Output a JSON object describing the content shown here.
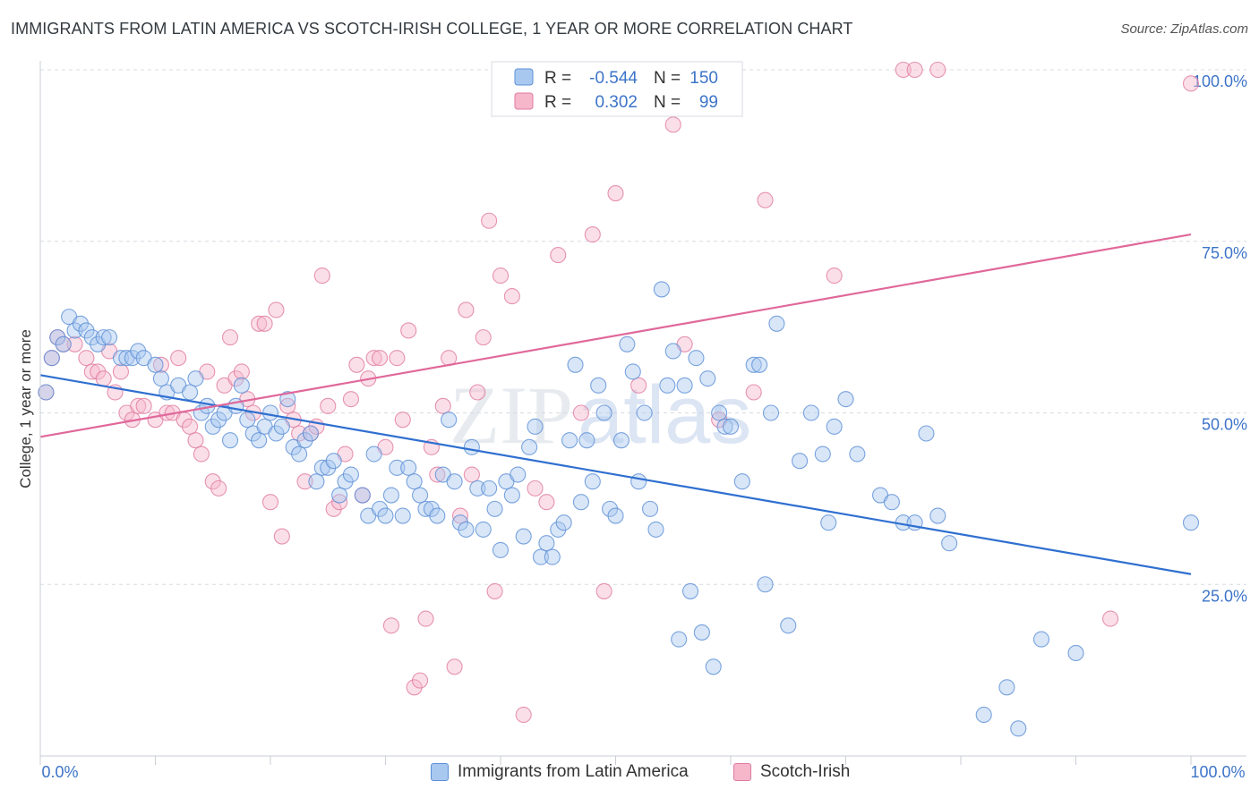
{
  "title": "IMMIGRANTS FROM LATIN AMERICA VS SCOTCH-IRISH COLLEGE, 1 YEAR OR MORE CORRELATION CHART",
  "source": "Source: ZipAtlas.com",
  "watermark": {
    "part1": "ZIP",
    "part2": "atlas"
  },
  "colors": {
    "blue_fill": "#a9c8f0",
    "blue_stroke": "#5b8fd6",
    "blue_line": "#2f6fd0",
    "pink_fill": "#f6b7cb",
    "pink_stroke": "#e07aa0",
    "pink_line": "#e0689a",
    "axis_label": "#3d74c9",
    "grid": "#d7dce2"
  },
  "legend": {
    "rows": [
      {
        "r_label": "R =",
        "r_value": "-0.544",
        "n_label": "N =",
        "n_value": "150"
      },
      {
        "r_label": "R =",
        "r_value": "0.302",
        "n_label": "N =",
        "n_value": "99"
      }
    ]
  },
  "bottom_legend": [
    "Immigrants from Latin America",
    "Scotch-Irish"
  ],
  "chart_data": {
    "type": "scatter",
    "xlabel": "",
    "ylabel": "College, 1 year or more",
    "xlim": [
      0,
      100
    ],
    "ylim": [
      0,
      100
    ],
    "x_tick_labels": [
      "0.0%",
      "100.0%"
    ],
    "y_tick_labels": [
      "25.0%",
      "50.0%",
      "75.0%",
      "100.0%"
    ],
    "y_ticks": [
      25,
      50,
      75,
      100
    ],
    "series": [
      {
        "name": "Immigrants from Latin America",
        "r": -0.544,
        "n": 150,
        "trend": {
          "x0": 0,
          "y0": 55.5,
          "x1": 100,
          "y1": 26.5
        },
        "points": [
          [
            0.5,
            53
          ],
          [
            1,
            58
          ],
          [
            1.5,
            61
          ],
          [
            2,
            60
          ],
          [
            2.5,
            64
          ],
          [
            3,
            62
          ],
          [
            3.5,
            63
          ],
          [
            4,
            62
          ],
          [
            4.5,
            61
          ],
          [
            5,
            60
          ],
          [
            5.5,
            61
          ],
          [
            6,
            61
          ],
          [
            7,
            58
          ],
          [
            7.5,
            58
          ],
          [
            8,
            58
          ],
          [
            8.5,
            59
          ],
          [
            9,
            58
          ],
          [
            10,
            57
          ],
          [
            10.5,
            55
          ],
          [
            11,
            53
          ],
          [
            12,
            54
          ],
          [
            13,
            53
          ],
          [
            13.5,
            55
          ],
          [
            14,
            50
          ],
          [
            14.5,
            51
          ],
          [
            15,
            48
          ],
          [
            15.5,
            49
          ],
          [
            16,
            50
          ],
          [
            16.5,
            46
          ],
          [
            17,
            51
          ],
          [
            17.5,
            54
          ],
          [
            18,
            49
          ],
          [
            18.5,
            47
          ],
          [
            19,
            46
          ],
          [
            19.5,
            48
          ],
          [
            20,
            50
          ],
          [
            20.5,
            47
          ],
          [
            21,
            48
          ],
          [
            21.5,
            52
          ],
          [
            22,
            45
          ],
          [
            22.5,
            44
          ],
          [
            23,
            46
          ],
          [
            23.5,
            47
          ],
          [
            24,
            40
          ],
          [
            24.5,
            42
          ],
          [
            25,
            42
          ],
          [
            25.5,
            43
          ],
          [
            26,
            38
          ],
          [
            26.5,
            40
          ],
          [
            27,
            41
          ],
          [
            28,
            38
          ],
          [
            28.5,
            35
          ],
          [
            29,
            44
          ],
          [
            29.5,
            36
          ],
          [
            30,
            35
          ],
          [
            30.5,
            38
          ],
          [
            31,
            42
          ],
          [
            31.5,
            35
          ],
          [
            32,
            42
          ],
          [
            32.5,
            40
          ],
          [
            33,
            38
          ],
          [
            33.5,
            36
          ],
          [
            34,
            36
          ],
          [
            34.5,
            35
          ],
          [
            35,
            41
          ],
          [
            35.5,
            49
          ],
          [
            36,
            40
          ],
          [
            36.5,
            34
          ],
          [
            37,
            33
          ],
          [
            37.5,
            45
          ],
          [
            38,
            39
          ],
          [
            38.5,
            33
          ],
          [
            39,
            39
          ],
          [
            39.5,
            36
          ],
          [
            40,
            30
          ],
          [
            40.5,
            40
          ],
          [
            41,
            38
          ],
          [
            41.5,
            41
          ],
          [
            42,
            32
          ],
          [
            42.5,
            45
          ],
          [
            43,
            48
          ],
          [
            43.5,
            29
          ],
          [
            44,
            31
          ],
          [
            44.5,
            29
          ],
          [
            45,
            33
          ],
          [
            45.5,
            34
          ],
          [
            46,
            46
          ],
          [
            46.5,
            57
          ],
          [
            47,
            37
          ],
          [
            47.5,
            46
          ],
          [
            48,
            40
          ],
          [
            48.5,
            54
          ],
          [
            49,
            50
          ],
          [
            49.5,
            36
          ],
          [
            50,
            35
          ],
          [
            50.5,
            46
          ],
          [
            51,
            60
          ],
          [
            51.5,
            56
          ],
          [
            52,
            40
          ],
          [
            52.5,
            50
          ],
          [
            53,
            36
          ],
          [
            53.5,
            33
          ],
          [
            54,
            68
          ],
          [
            54.5,
            54
          ],
          [
            55,
            59
          ],
          [
            55.5,
            17
          ],
          [
            56,
            54
          ],
          [
            56.5,
            24
          ],
          [
            57,
            58
          ],
          [
            57.5,
            18
          ],
          [
            58,
            55
          ],
          [
            58.5,
            13
          ],
          [
            59,
            50
          ],
          [
            59.5,
            48
          ],
          [
            60,
            48
          ],
          [
            61,
            40
          ],
          [
            62,
            57
          ],
          [
            62.5,
            57
          ],
          [
            63,
            25
          ],
          [
            63.5,
            50
          ],
          [
            64,
            63
          ],
          [
            65,
            19
          ],
          [
            66,
            43
          ],
          [
            67,
            50
          ],
          [
            68,
            44
          ],
          [
            68.5,
            34
          ],
          [
            69,
            48
          ],
          [
            70,
            52
          ],
          [
            71,
            44
          ],
          [
            73,
            38
          ],
          [
            74,
            37
          ],
          [
            75,
            34
          ],
          [
            76,
            34
          ],
          [
            77,
            47
          ],
          [
            78,
            35
          ],
          [
            79,
            31
          ],
          [
            82,
            6
          ],
          [
            84,
            10
          ],
          [
            85,
            4
          ],
          [
            87,
            17
          ],
          [
            90,
            15
          ],
          [
            100,
            34
          ]
        ]
      },
      {
        "name": "Scotch-Irish",
        "r": 0.302,
        "n": 99,
        "trend": {
          "x0": 0,
          "y0": 46.5,
          "x1": 100,
          "y1": 76
        },
        "points": [
          [
            0.5,
            53
          ],
          [
            1,
            58
          ],
          [
            1.5,
            61
          ],
          [
            2,
            60
          ],
          [
            3,
            60
          ],
          [
            4,
            58
          ],
          [
            4.5,
            56
          ],
          [
            5,
            56
          ],
          [
            5.5,
            55
          ],
          [
            6,
            59
          ],
          [
            6.5,
            53
          ],
          [
            7,
            56
          ],
          [
            7.5,
            50
          ],
          [
            8,
            49
          ],
          [
            8.5,
            51
          ],
          [
            9,
            51
          ],
          [
            10,
            49
          ],
          [
            10.5,
            57
          ],
          [
            11,
            50
          ],
          [
            11.5,
            50
          ],
          [
            12,
            58
          ],
          [
            12.5,
            49
          ],
          [
            13,
            48
          ],
          [
            13.5,
            46
          ],
          [
            14,
            44
          ],
          [
            14.5,
            56
          ],
          [
            15,
            40
          ],
          [
            15.5,
            39
          ],
          [
            16,
            54
          ],
          [
            16.5,
            61
          ],
          [
            17,
            55
          ],
          [
            17.5,
            56
          ],
          [
            18,
            52
          ],
          [
            18.5,
            50
          ],
          [
            19,
            63
          ],
          [
            19.5,
            63
          ],
          [
            20,
            37
          ],
          [
            20.5,
            65
          ],
          [
            21,
            32
          ],
          [
            21.5,
            51
          ],
          [
            22,
            49
          ],
          [
            22.5,
            47
          ],
          [
            23,
            40
          ],
          [
            23.5,
            47
          ],
          [
            24,
            48
          ],
          [
            24.5,
            70
          ],
          [
            25,
            51
          ],
          [
            25.5,
            36
          ],
          [
            26,
            37
          ],
          [
            26.5,
            44
          ],
          [
            27,
            52
          ],
          [
            27.5,
            57
          ],
          [
            28,
            38
          ],
          [
            28.5,
            55
          ],
          [
            29,
            58
          ],
          [
            29.5,
            58
          ],
          [
            30,
            45
          ],
          [
            30.5,
            19
          ],
          [
            31,
            58
          ],
          [
            31.5,
            49
          ],
          [
            32,
            62
          ],
          [
            32.5,
            10
          ],
          [
            33,
            11
          ],
          [
            33.5,
            20
          ],
          [
            34,
            45
          ],
          [
            34.5,
            41
          ],
          [
            35,
            51
          ],
          [
            35.5,
            58
          ],
          [
            36,
            13
          ],
          [
            36.5,
            35
          ],
          [
            37,
            65
          ],
          [
            37.5,
            41
          ],
          [
            38,
            53
          ],
          [
            38.5,
            61
          ],
          [
            39,
            78
          ],
          [
            39.5,
            24
          ],
          [
            40,
            70
          ],
          [
            41,
            67
          ],
          [
            42,
            6
          ],
          [
            43,
            39
          ],
          [
            44,
            37
          ],
          [
            45,
            73
          ],
          [
            47,
            50
          ],
          [
            48,
            76
          ],
          [
            49,
            24
          ],
          [
            50,
            82
          ],
          [
            52,
            54
          ],
          [
            55,
            92
          ],
          [
            56,
            60
          ],
          [
            59,
            49
          ],
          [
            62,
            53
          ],
          [
            63,
            81
          ],
          [
            69,
            70
          ],
          [
            75,
            100
          ],
          [
            76,
            100
          ],
          [
            78,
            100
          ],
          [
            100,
            98
          ],
          [
            93,
            20
          ]
        ]
      }
    ]
  }
}
